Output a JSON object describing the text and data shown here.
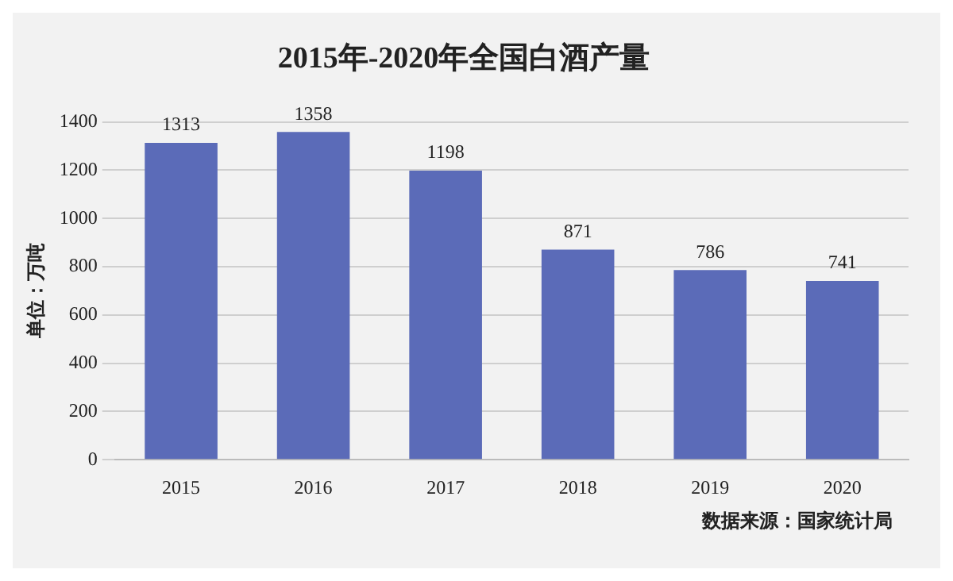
{
  "chart_data": {
    "type": "bar",
    "title": "2015年-2020年全国白酒产量",
    "ylabel": "单位：万吨",
    "categories": [
      "2015",
      "2016",
      "2017",
      "2018",
      "2019",
      "2020"
    ],
    "values": [
      1313,
      1358,
      1198,
      871,
      786,
      741
    ],
    "color": "#5b6bb8",
    "ylim": [
      0,
      1400
    ],
    "yticks": [
      0,
      200,
      400,
      600,
      800,
      1000,
      1200,
      1400
    ],
    "grid": "y",
    "data_labels": true,
    "legend": false,
    "annotations": [
      "数据来源：国家统计局"
    ]
  }
}
